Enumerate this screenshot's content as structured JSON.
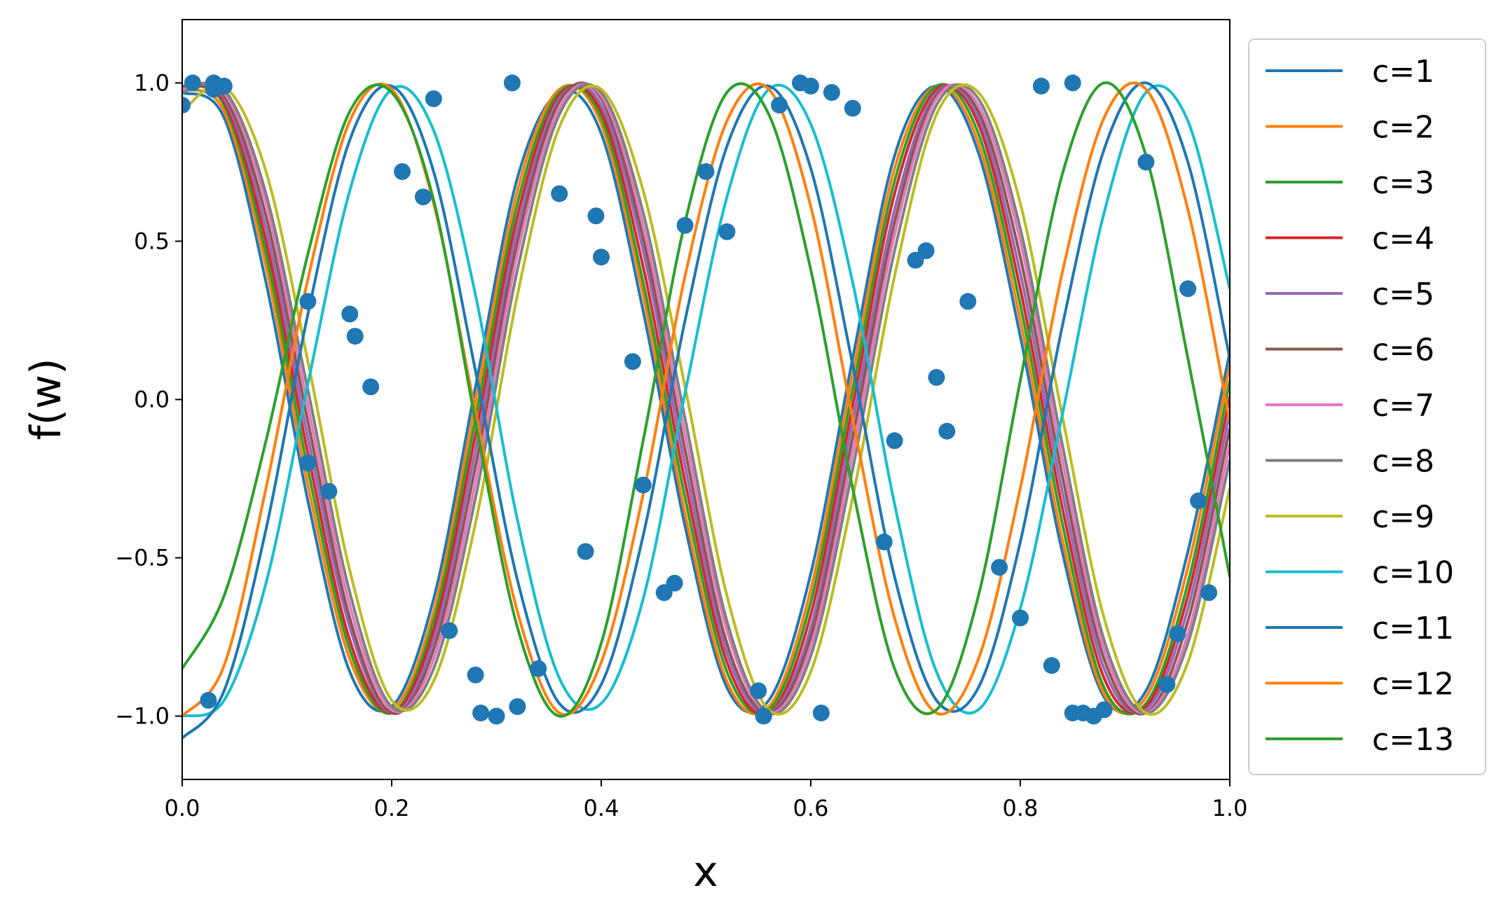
{
  "chart_data": {
    "type": "line",
    "title": "",
    "xlabel": "x",
    "ylabel": "f(w)",
    "xlim": [
      0.0,
      1.0
    ],
    "ylim": [
      -1.2,
      1.2
    ],
    "grid": false,
    "legend_position": "outside-right",
    "x_ticks": [
      0.0,
      0.2,
      0.4,
      0.6,
      0.8,
      1.0
    ],
    "x_tick_labels": [
      "0.0",
      "0.2",
      "0.4",
      "0.6",
      "0.8",
      "1.0"
    ],
    "y_ticks": [
      -1.0,
      -0.5,
      0.0,
      0.5,
      1.0
    ],
    "y_tick_labels": [
      "−1.0",
      "−0.5",
      "0.0",
      "0.5",
      "1.0"
    ],
    "x": [
      0.0,
      0.04,
      0.08,
      0.12,
      0.16,
      0.2,
      0.24,
      0.28,
      0.32,
      0.36,
      0.4,
      0.44,
      0.48,
      0.52,
      0.56,
      0.6,
      0.64,
      0.68,
      0.72,
      0.76,
      0.8,
      0.84,
      0.88,
      0.92,
      0.96,
      1.0
    ],
    "series": [
      {
        "name": "c=1",
        "color": "#1f77b4",
        "values": [
          0.97,
          0.89,
          0.37,
          -0.32,
          -0.86,
          -0.97,
          -0.63,
          0.04,
          0.7,
          0.97,
          0.84,
          0.28,
          -0.4,
          -0.91,
          -0.95,
          -0.55,
          0.13,
          0.77,
          0.99,
          0.78,
          0.2,
          -0.48,
          -0.94,
          -0.92,
          -0.48,
          0.15
        ]
      },
      {
        "name": "c=2",
        "color": "#ff7f0e",
        "values": [
          0.98,
          0.91,
          0.42,
          -0.27,
          -0.82,
          -0.98,
          -0.67,
          -0.01,
          0.66,
          0.98,
          0.87,
          0.33,
          -0.36,
          -0.89,
          -0.97,
          -0.6,
          0.08,
          0.73,
          0.99,
          0.81,
          0.25,
          -0.44,
          -0.93,
          -0.94,
          -0.53,
          0.11
        ]
      },
      {
        "name": "c=3",
        "color": "#2ca02c",
        "values": [
          0.99,
          0.93,
          0.46,
          -0.22,
          -0.79,
          -0.99,
          -0.7,
          -0.06,
          0.62,
          0.97,
          0.89,
          0.37,
          -0.31,
          -0.86,
          -0.98,
          -0.64,
          0.03,
          0.69,
          0.99,
          0.84,
          0.3,
          -0.39,
          -0.91,
          -0.96,
          -0.58,
          0.06
        ]
      },
      {
        "name": "c=4",
        "color": "#d62728",
        "values": [
          0.99,
          0.94,
          0.5,
          -0.17,
          -0.76,
          -0.99,
          -0.73,
          -0.11,
          0.58,
          0.96,
          0.91,
          0.42,
          -0.26,
          -0.83,
          -0.99,
          -0.68,
          -0.02,
          0.65,
          0.98,
          0.87,
          0.35,
          -0.34,
          -0.88,
          -0.97,
          -0.62,
          0.01
        ]
      },
      {
        "name": "c=5",
        "color": "#9467bd",
        "values": [
          0.99,
          0.95,
          0.54,
          -0.12,
          -0.72,
          -0.99,
          -0.76,
          -0.16,
          0.54,
          0.95,
          0.93,
          0.47,
          -0.21,
          -0.8,
          -0.99,
          -0.72,
          -0.07,
          0.6,
          0.97,
          0.89,
          0.4,
          -0.29,
          -0.85,
          -0.98,
          -0.66,
          -0.04
        ]
      },
      {
        "name": "c=6",
        "color": "#8c564b",
        "values": [
          0.99,
          0.96,
          0.58,
          -0.07,
          -0.69,
          -0.99,
          -0.79,
          -0.21,
          0.5,
          0.94,
          0.95,
          0.51,
          -0.16,
          -0.77,
          -0.99,
          -0.75,
          -0.12,
          0.56,
          0.96,
          0.91,
          0.45,
          -0.24,
          -0.82,
          -0.99,
          -0.7,
          -0.09
        ]
      },
      {
        "name": "c=7",
        "color": "#e377c2",
        "values": [
          0.98,
          0.97,
          0.62,
          -0.02,
          -0.65,
          -0.98,
          -0.82,
          -0.26,
          0.46,
          0.92,
          0.96,
          0.55,
          -0.11,
          -0.73,
          -0.99,
          -0.78,
          -0.17,
          0.52,
          0.95,
          0.93,
          0.5,
          -0.19,
          -0.79,
          -0.99,
          -0.74,
          -0.14
        ]
      },
      {
        "name": "c=8",
        "color": "#7f7f7f",
        "values": [
          0.97,
          0.98,
          0.65,
          0.03,
          -0.61,
          -0.97,
          -0.85,
          -0.31,
          0.41,
          0.9,
          0.97,
          0.59,
          -0.06,
          -0.7,
          -0.99,
          -0.81,
          -0.22,
          0.47,
          0.93,
          0.95,
          0.54,
          -0.14,
          -0.76,
          -0.99,
          -0.77,
          -0.19
        ]
      },
      {
        "name": "c=9",
        "color": "#bcbd22",
        "values": [
          0.91,
          0.99,
          0.72,
          0.12,
          -0.54,
          -0.95,
          -0.89,
          -0.39,
          0.33,
          0.86,
          0.98,
          0.66,
          0.04,
          -0.62,
          -0.98,
          -0.86,
          -0.31,
          0.39,
          0.9,
          0.97,
          0.62,
          -0.05,
          -0.69,
          -0.99,
          -0.83,
          -0.28
        ]
      },
      {
        "name": "c=10",
        "color": "#17becf",
        "values": [
          -1.0,
          -0.95,
          -0.58,
          0.05,
          0.66,
          0.98,
          0.85,
          0.33,
          -0.38,
          -0.88,
          -0.96,
          -0.63,
          0.02,
          0.64,
          0.98,
          0.87,
          0.37,
          -0.33,
          -0.86,
          -0.98,
          -0.66,
          -0.05,
          0.59,
          0.97,
          0.88,
          0.35
        ]
      },
      {
        "name": "c=11",
        "color": "#1f77b4",
        "values": [
          -1.07,
          -0.92,
          -0.41,
          0.27,
          0.82,
          0.99,
          0.72,
          0.09,
          -0.57,
          -0.96,
          -0.9,
          -0.43,
          0.25,
          0.8,
          0.99,
          0.73,
          0.11,
          -0.56,
          -0.95,
          -0.91,
          -0.45,
          0.23,
          0.79,
          1.0,
          0.75,
          0.13
        ]
      },
      {
        "name": "c=12",
        "color": "#ff7f0e",
        "values": [
          -1.0,
          -0.84,
          -0.28,
          0.38,
          0.88,
          0.98,
          0.62,
          -0.04,
          -0.67,
          -0.99,
          -0.83,
          -0.3,
          0.39,
          0.88,
          0.98,
          0.61,
          -0.06,
          -0.69,
          -0.99,
          -0.82,
          -0.28,
          0.4,
          0.89,
          0.98,
          0.6,
          -0.07
        ]
      },
      {
        "name": "c=13",
        "color": "#2ca02c",
        "values": [
          -0.85,
          -0.62,
          -0.13,
          0.46,
          0.91,
          0.97,
          0.63,
          -0.07,
          -0.72,
          -1.0,
          -0.77,
          -0.13,
          0.56,
          0.97,
          0.9,
          0.41,
          -0.28,
          -0.85,
          -0.98,
          -0.62,
          0.06,
          0.71,
          1.0,
          0.77,
          0.13,
          -0.56
        ]
      }
    ],
    "scatter": {
      "color": "#1f77b4",
      "x": [
        0.0,
        0.01,
        0.03,
        0.04,
        0.03,
        0.12,
        0.12,
        0.14,
        0.16,
        0.165,
        0.18,
        0.21,
        0.23,
        0.24,
        0.025,
        0.255,
        0.28,
        0.285,
        0.3,
        0.315,
        0.32,
        0.34,
        0.36,
        0.385,
        0.395,
        0.4,
        0.43,
        0.44,
        0.47,
        0.48,
        0.5,
        0.52,
        0.46,
        0.55,
        0.555,
        0.57,
        0.59,
        0.6,
        0.61,
        0.62,
        0.64,
        0.67,
        0.68,
        0.7,
        0.71,
        0.72,
        0.73,
        0.75,
        0.78,
        0.8,
        0.82,
        0.83,
        0.85,
        0.85,
        0.86,
        0.87,
        0.88,
        0.92,
        0.94,
        0.95,
        0.96,
        0.97,
        0.98
      ],
      "y": [
        0.93,
        1.0,
        1.0,
        0.99,
        0.98,
        0.31,
        -0.2,
        -0.29,
        0.27,
        0.2,
        0.04,
        0.72,
        0.64,
        0.95,
        -0.95,
        -0.73,
        -0.87,
        -0.99,
        -1.0,
        1.0,
        -0.97,
        -0.85,
        0.65,
        -0.48,
        0.58,
        0.45,
        0.12,
        -0.27,
        -0.58,
        0.55,
        0.72,
        0.53,
        -0.61,
        -0.92,
        -1.0,
        0.93,
        1.0,
        0.99,
        -0.99,
        0.97,
        0.92,
        -0.45,
        -0.13,
        0.44,
        0.47,
        0.07,
        -0.1,
        0.31,
        -0.53,
        -0.69,
        0.99,
        -0.84,
        1.0,
        -0.99,
        -0.99,
        -1.0,
        -0.98,
        0.75,
        -0.9,
        -0.74,
        0.35,
        -0.32,
        -0.61
      ]
    }
  }
}
